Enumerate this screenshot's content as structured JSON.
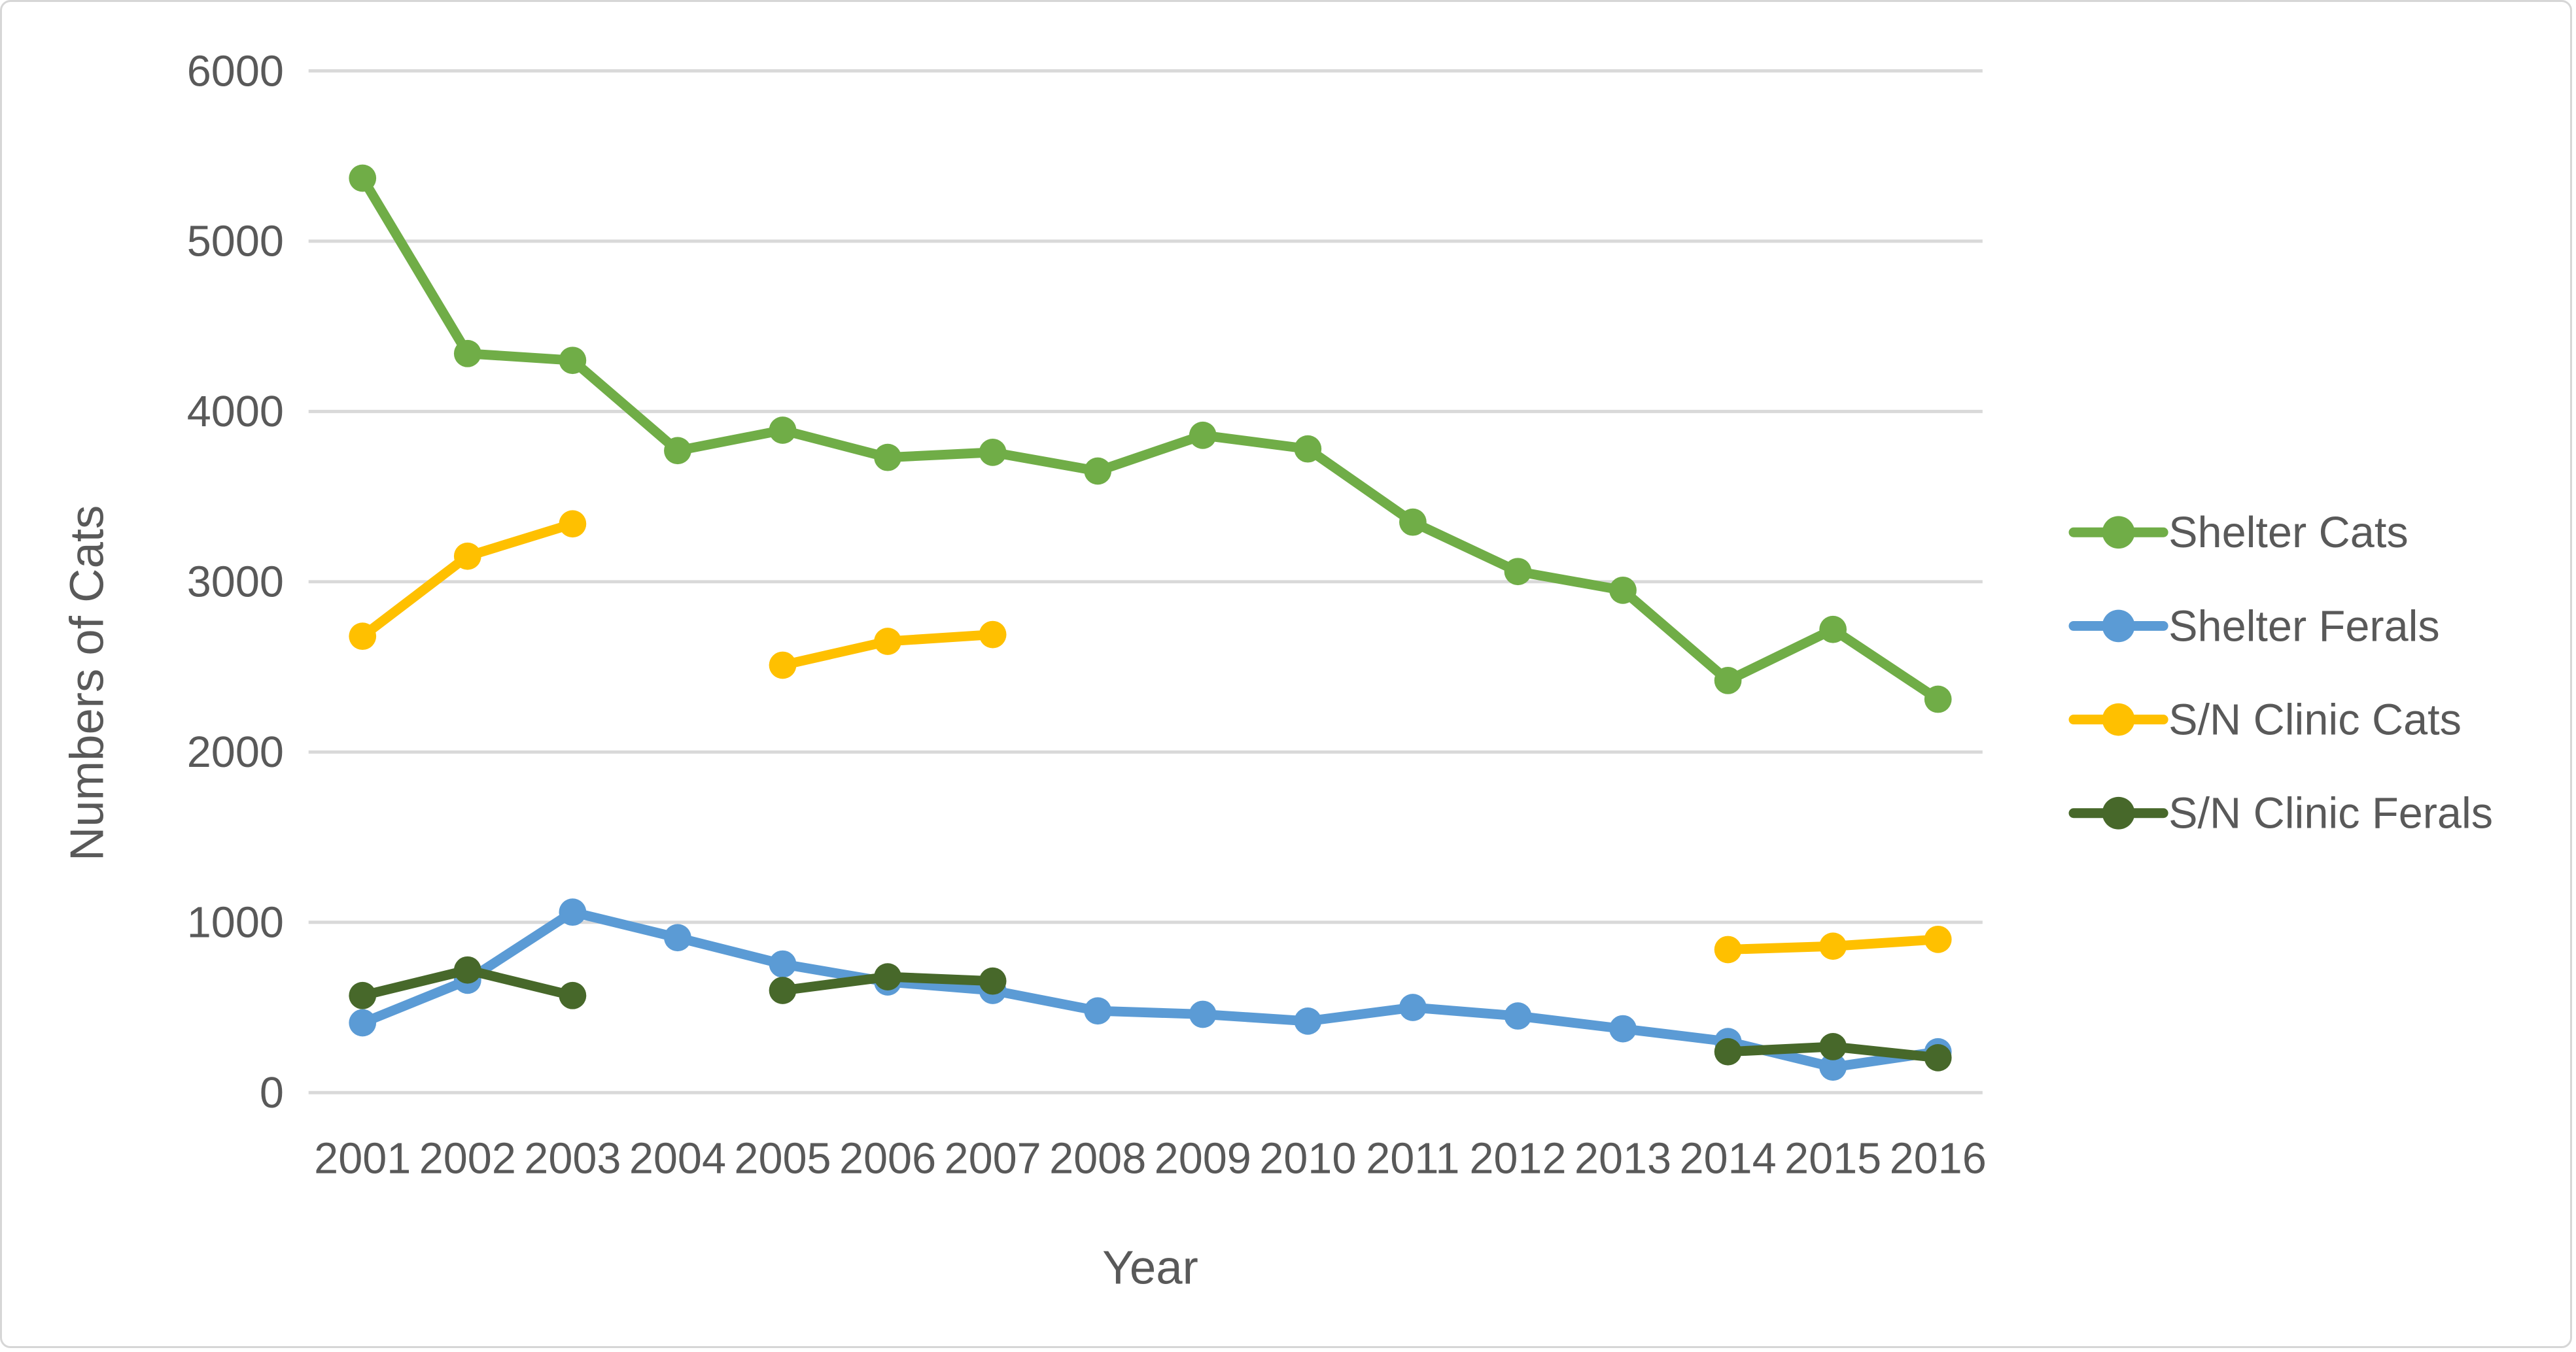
{
  "chart_data": {
    "type": "line",
    "title": "",
    "xlabel": "Year",
    "ylabel": "Numbers of Cats",
    "categories": [
      "2001",
      "2002",
      "2003",
      "2004",
      "2005",
      "2006",
      "2007",
      "2008",
      "2009",
      "2010",
      "2011",
      "2012",
      "2013",
      "2014",
      "2015",
      "2016"
    ],
    "y_ticks": [
      0,
      1000,
      2000,
      3000,
      4000,
      5000,
      6000
    ],
    "ylim": [
      0,
      6000
    ],
    "grid": "horizontal",
    "legend_position": "right",
    "series": [
      {
        "name": "Shelter Cats",
        "color": "#70AD47",
        "values": [
          5370,
          4340,
          4300,
          3770,
          3890,
          3730,
          3760,
          3650,
          3860,
          3780,
          3350,
          3060,
          2950,
          2420,
          2720,
          2310
        ]
      },
      {
        "name": "Shelter Ferals",
        "color": "#5B9BD5",
        "values": [
          410,
          660,
          1060,
          910,
          755,
          650,
          600,
          480,
          460,
          420,
          500,
          450,
          375,
          300,
          150,
          240
        ]
      },
      {
        "name": "S/N Clinic Cats",
        "color": "#FFC000",
        "values": [
          2680,
          3150,
          3340,
          null,
          2510,
          2650,
          2690,
          null,
          null,
          null,
          null,
          null,
          null,
          840,
          860,
          900
        ]
      },
      {
        "name": "S/N Clinic Ferals",
        "color": "#47682A",
        "values": [
          570,
          720,
          570,
          null,
          600,
          680,
          655,
          null,
          null,
          null,
          null,
          null,
          null,
          240,
          270,
          205
        ]
      }
    ],
    "colors": {
      "gridline": "#D9D9D9",
      "axis_text": "#595959",
      "frame_border": "#D6D6D6",
      "background": "#FFFFFF"
    }
  }
}
